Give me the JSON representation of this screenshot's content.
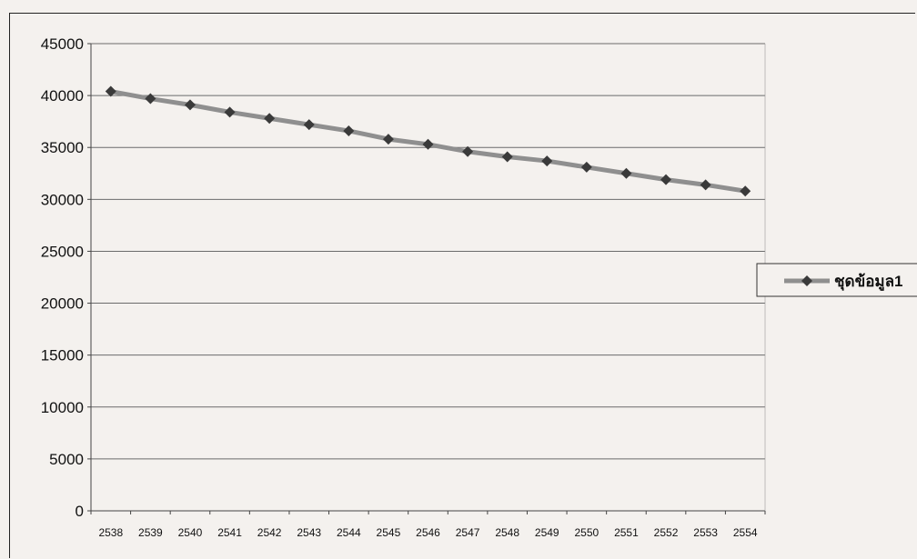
{
  "chart_data": {
    "type": "line",
    "title": "",
    "xlabel": "",
    "ylabel": "",
    "categories": [
      "2538",
      "2539",
      "2540",
      "2541",
      "2542",
      "2543",
      "2544",
      "2545",
      "2546",
      "2547",
      "2548",
      "2549",
      "2550",
      "2551",
      "2552",
      "2553",
      "2554"
    ],
    "ylim": [
      0,
      45000
    ],
    "yticks": [
      0,
      5000,
      10000,
      15000,
      20000,
      25000,
      30000,
      35000,
      40000,
      45000
    ],
    "grid": "horizontal",
    "legend_position": "right",
    "series": [
      {
        "name": "ชุดข้อมูล1",
        "color": "#8f8f8f",
        "marker_color": "#3a3a3a",
        "marker": "diamond",
        "values": [
          40400,
          39700,
          39100,
          38400,
          37800,
          37200,
          36600,
          35800,
          35300,
          34600,
          34100,
          33700,
          33100,
          32500,
          31900,
          31400,
          30800
        ]
      }
    ]
  }
}
